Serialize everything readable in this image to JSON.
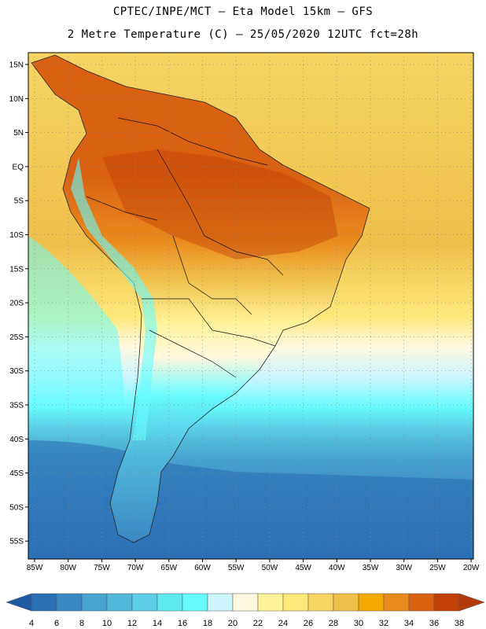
{
  "title": {
    "line1": "CPTEC/INPE/MCT –  Eta Model 15km – GFS",
    "line2": "2 Metre Temperature (C) – 25/05/2020 12UTC fct=28h"
  },
  "lat_labels": [
    "15N",
    "10N",
    "5N",
    "EQ",
    "5S",
    "10S",
    "15S",
    "20S",
    "25S",
    "30S",
    "35S",
    "40S",
    "45S",
    "50S",
    "55S"
  ],
  "lon_labels": [
    "85W",
    "80W",
    "75W",
    "70W",
    "65W",
    "60W",
    "55W",
    "50W",
    "45W",
    "40W",
    "35W",
    "30W",
    "25W",
    "20W"
  ],
  "colorbar": {
    "labels": [
      "4",
      "6",
      "8",
      "10",
      "12",
      "14",
      "16",
      "18",
      "20",
      "22",
      "24",
      "26",
      "28",
      "30",
      "32",
      "34",
      "36",
      "38"
    ],
    "colors": [
      "#1e5aa0",
      "#2b70b4",
      "#3a88c4",
      "#47a2d0",
      "#52b8dc",
      "#5ccfe6",
      "#5ee8f0",
      "#66fbff",
      "#cdf6ff",
      "#fff8e0",
      "#fff39a",
      "#fde87a",
      "#f6d563",
      "#f0c04a",
      "#f3a900",
      "#e98a1c",
      "#d96212",
      "#c04008",
      "#b23a0a"
    ]
  }
}
